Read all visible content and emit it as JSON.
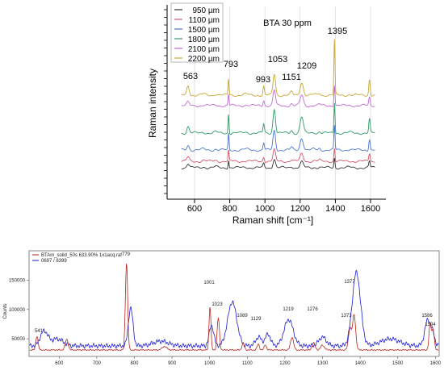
{
  "chart_data": [
    {
      "type": "line",
      "title": "BTA 30 ppm",
      "xlabel": "Raman shift [cm⁻¹]",
      "ylabel": "Raman intensity",
      "xlim": [
        520,
        1650
      ],
      "x_ticks": [
        "600",
        "800",
        "1000",
        "1200",
        "1400",
        "1600"
      ],
      "grid": "vertical",
      "legend_position": "top-left",
      "series": [
        {
          "name": "950 µm",
          "color": "#333333"
        },
        {
          "name": "1100 µm",
          "color": "#d4566a"
        },
        {
          "name": "1500 µm",
          "color": "#4a78d0"
        },
        {
          "name": "1800 µm",
          "color": "#2f9a66"
        },
        {
          "name": "2100 µm",
          "color": "#c46ad8"
        },
        {
          "name": "2200 µm",
          "color": "#c8a832"
        }
      ],
      "annotations": [
        "563",
        "793",
        "993",
        "1053",
        "1151",
        "1209",
        "1395"
      ]
    },
    {
      "type": "line",
      "xlabel": "",
      "ylabel": "Counts",
      "xlim": [
        520,
        1610
      ],
      "ylim": [
        20000,
        200000
      ],
      "x_ticks": [
        "600",
        "700",
        "800",
        "900",
        "1000",
        "1100",
        "1200",
        "1300",
        "1400",
        "1500",
        "1600"
      ],
      "y_ticks": [
        "50000",
        "100000",
        "150000"
      ],
      "legend_position": "top-left",
      "series": [
        {
          "name": "BTAm_solid_50s 633.90% 1x1acq.raf",
          "color": "#b8261a"
        },
        {
          "name": "0697 / 8399",
          "color": "#1a1ad6"
        }
      ],
      "annotations": [
        "779",
        "1001",
        "1023",
        "1089",
        "1129",
        "1219",
        "1276",
        "1377",
        "1373",
        "1586",
        "1594",
        "541"
      ]
    }
  ]
}
